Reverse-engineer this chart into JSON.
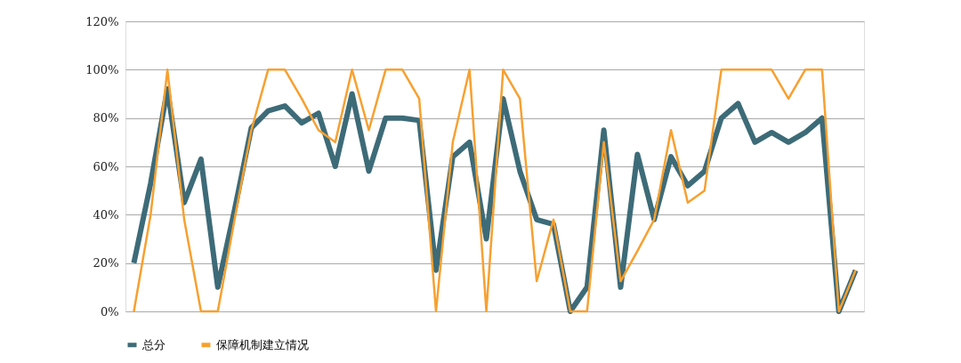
{
  "chart_data": {
    "type": "line",
    "categories": [
      null,
      null,
      null,
      null,
      null,
      null,
      null,
      null,
      null,
      null,
      null,
      null,
      null,
      null,
      null,
      null,
      null,
      null,
      null,
      null,
      null,
      null,
      null,
      null,
      null,
      null,
      null,
      null,
      null,
      null,
      null,
      null,
      null,
      null,
      null,
      null,
      null,
      null,
      null,
      null,
      null,
      null,
      null,
      null
    ],
    "series": [
      {
        "name": "总分",
        "color": "#3d6b78",
        "values": [
          20,
          53,
          92,
          45,
          63,
          10,
          42,
          76,
          83,
          85,
          78,
          82,
          60,
          90,
          58,
          80,
          80,
          79,
          17,
          64,
          70,
          30,
          88,
          58,
          38,
          36,
          0,
          10,
          75,
          10,
          65,
          38,
          64,
          52,
          58,
          80,
          86,
          70,
          74,
          70,
          74,
          80,
          0,
          17
        ]
      },
      {
        "name": "保障机制建立情况",
        "color": "#f7a030",
        "values": [
          0,
          40,
          100,
          38,
          0,
          0,
          38,
          75,
          100,
          100,
          88,
          75,
          70,
          100,
          75,
          100,
          100,
          88,
          0,
          70,
          100,
          0,
          100,
          88,
          12.5,
          38,
          0,
          0,
          70,
          12.5,
          25,
          38,
          75,
          45,
          50,
          100,
          100,
          100,
          100,
          88,
          100,
          100,
          0,
          17
        ]
      }
    ],
    "ylim": [
      0,
      120
    ],
    "yticks": [
      {
        "value": 0,
        "label": "0%"
      },
      {
        "value": 20,
        "label": "20%"
      },
      {
        "value": 40,
        "label": "40%"
      },
      {
        "value": 60,
        "label": "60%"
      },
      {
        "value": 80,
        "label": "80%"
      },
      {
        "value": 100,
        "label": "100%"
      },
      {
        "value": 120,
        "label": "120%"
      }
    ],
    "grid": "y",
    "legend": "bottom",
    "marker": "none",
    "line_style": "solid"
  }
}
